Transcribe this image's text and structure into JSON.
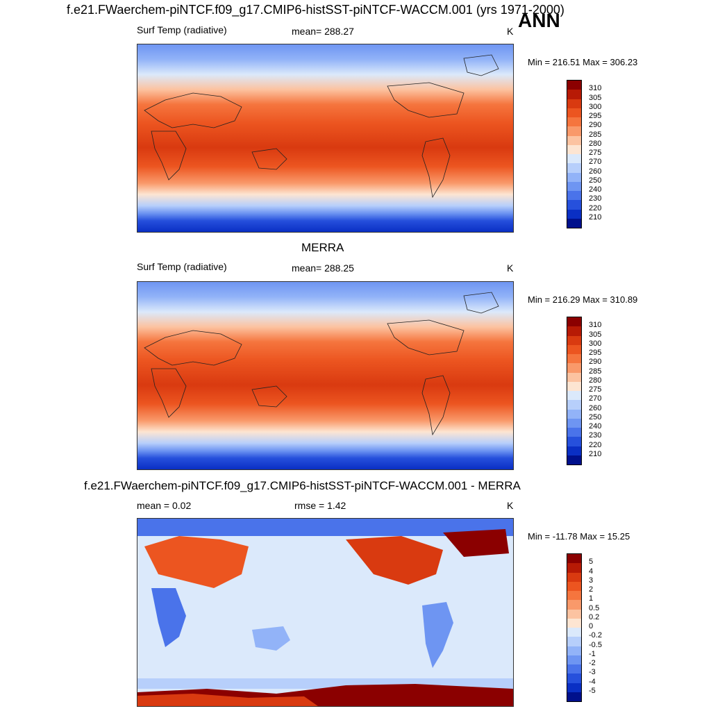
{
  "title": "f.e21.FWaerchem-piNTCF.f09_g17.CMIP6-histSST-piNTCF-WACCM.001 (yrs 1971-2000)",
  "season": "ANN",
  "panels": [
    {
      "heading": "",
      "left_label": "Surf Temp (radiative)",
      "center_label": "mean= 288.27",
      "units": "K",
      "minmax": "Min = 216.51 Max = 306.23",
      "colorbar_labels": [
        "310",
        "305",
        "300",
        "295",
        "290",
        "285",
        "280",
        "275",
        "270",
        "260",
        "250",
        "240",
        "230",
        "220",
        "210"
      ]
    },
    {
      "heading": "MERRA",
      "left_label": "Surf Temp (radiative)",
      "center_label": "mean= 288.25",
      "units": "K",
      "minmax": "Min = 216.29 Max = 310.89",
      "colorbar_labels": [
        "310",
        "305",
        "300",
        "295",
        "290",
        "285",
        "280",
        "275",
        "270",
        "260",
        "250",
        "240",
        "230",
        "220",
        "210"
      ]
    },
    {
      "heading": "f.e21.FWaerchem-piNTCF.f09_g17.CMIP6-histSST-piNTCF-WACCM.001 - MERRA",
      "left_label": "mean =   0.02",
      "center_label": "rmse =   1.42",
      "units": "K",
      "minmax": "Min = -11.78 Max =  15.25",
      "colorbar_labels": [
        "5",
        "4",
        "3",
        "2",
        "1",
        "0.5",
        "0.2",
        "0",
        "-0.2",
        "-0.5",
        "-1",
        "-2",
        "-3",
        "-4",
        "-5"
      ]
    }
  ],
  "colors": {
    "abs_scale": [
      "#8b0000",
      "#b71a05",
      "#d93a10",
      "#ec5520",
      "#f5753e",
      "#f9996a",
      "#fcc3a1",
      "#fde5d2",
      "#dbe9fb",
      "#b7cffb",
      "#92b3f8",
      "#6e95f2",
      "#4a73ea",
      "#2650dc",
      "#0a2fc4",
      "#00108c"
    ],
    "diff_scale": [
      "#8b0000",
      "#b71a05",
      "#d93a10",
      "#ec5520",
      "#f5753e",
      "#f9996a",
      "#fcc3a1",
      "#fde5d2",
      "#dbe9fb",
      "#b7cffb",
      "#92b3f8",
      "#6e95f2",
      "#4a73ea",
      "#2650dc",
      "#0a2fc4",
      "#00108c"
    ]
  },
  "chart_data": [
    {
      "type": "heatmap",
      "title": "",
      "field": "Surf Temp (radiative)",
      "units": "K",
      "mean": 288.27,
      "min": 216.51,
      "max": 306.23,
      "levels": [
        210,
        220,
        230,
        240,
        250,
        260,
        270,
        275,
        280,
        285,
        290,
        295,
        300,
        305,
        310
      ]
    },
    {
      "type": "heatmap",
      "title": "MERRA",
      "field": "Surf Temp (radiative)",
      "units": "K",
      "mean": 288.25,
      "min": 216.29,
      "max": 310.89,
      "levels": [
        210,
        220,
        230,
        240,
        250,
        260,
        270,
        275,
        280,
        285,
        290,
        295,
        300,
        305,
        310
      ]
    },
    {
      "type": "heatmap",
      "title": "f.e21.FWaerchem-piNTCF.f09_g17.CMIP6-histSST-piNTCF-WACCM.001 - MERRA",
      "units": "K",
      "mean": 0.02,
      "rmse": 1.42,
      "min": -11.78,
      "max": 15.25,
      "levels": [
        -5,
        -4,
        -3,
        -2,
        -1,
        -0.5,
        -0.2,
        0,
        0.2,
        0.5,
        1,
        2,
        3,
        4,
        5
      ]
    }
  ]
}
